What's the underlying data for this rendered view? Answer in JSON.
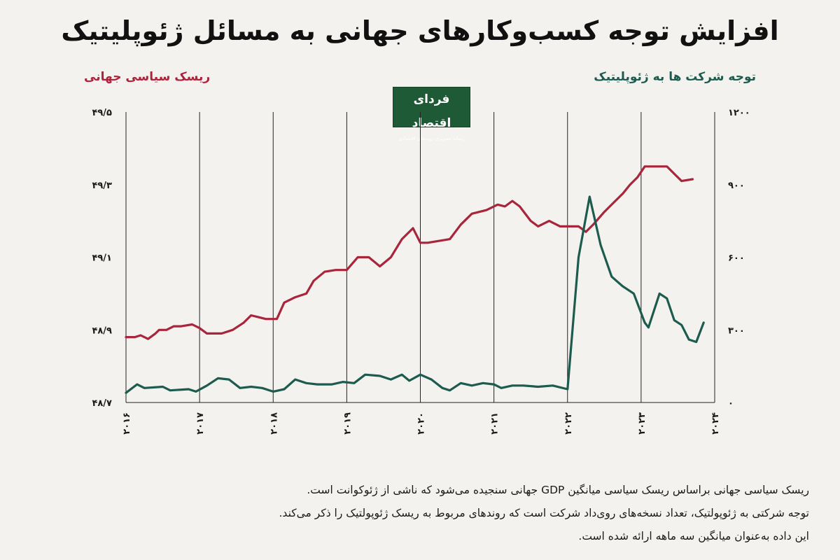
{
  "title": "افزایش توجه کسب‌وکارهای جهانی به مسائل ژئوپلیتیک",
  "logo": {
    "name": "فردای اقتصاد",
    "tagline": "رسانه تصویری روندهای اقتصادی"
  },
  "notes": [
    "ریسک سیاسی جهانی براساس ریسک سیاسی میانگین GDP جهانی سنجیده می‌شود که ناشی از ژئوکوانت است.",
    "توجه شرکتی به ژئوپولتیک، تعداد نسخه‌های روی‌داد شرکت است که روندهای مربوط به ریسک ژئوپولتیک را ذکر می‌کند.",
    "این داده به‌عنوان میانگین سه ماهه ارائه شده است."
  ],
  "colors": {
    "risk": "#a8253c",
    "attention": "#1d5b4f",
    "background": "#f3f2ee"
  },
  "chart_data": {
    "type": "line",
    "x_tick_labels": [
      "۲۰۱۶",
      "۲۰۱۷",
      "۲۰۱۸",
      "۲۰۱۹",
      "۲۰۲۰",
      "۲۰۲۱",
      "۲۰۲۲",
      "۲۰۲۳",
      "۲۰۲۴"
    ],
    "xlim": [
      2016,
      2024
    ],
    "left_axis": {
      "label": "ریسک سیاسی جهانی",
      "tick_labels": [
        "۴۸/۷",
        "۴۸/۹",
        "۴۹/۱",
        "۴۹/۳",
        "۴۹/۵"
      ],
      "ylim": [
        48.7,
        49.5
      ]
    },
    "right_axis": {
      "label": "توجه شرکت ها به ژئوپلیتیک",
      "tick_labels": [
        "۰",
        "۳۰۰",
        "۶۰۰",
        "۹۰۰",
        "۱۲۰۰"
      ],
      "ylim": [
        0,
        1200
      ]
    },
    "grid": "vertical",
    "series": [
      {
        "name": "ریسک سیاسی جهانی",
        "axis": "left",
        "points": [
          [
            2016.0,
            48.88
          ],
          [
            2016.12,
            48.88
          ],
          [
            2016.2,
            48.885
          ],
          [
            2016.3,
            48.875
          ],
          [
            2016.4,
            48.89
          ],
          [
            2016.45,
            48.9
          ],
          [
            2016.55,
            48.9
          ],
          [
            2016.65,
            48.91
          ],
          [
            2016.75,
            48.91
          ],
          [
            2016.9,
            48.915
          ],
          [
            2017.0,
            48.905
          ],
          [
            2017.1,
            48.89
          ],
          [
            2017.3,
            48.89
          ],
          [
            2017.45,
            48.9
          ],
          [
            2017.6,
            48.92
          ],
          [
            2017.7,
            48.94
          ],
          [
            2017.8,
            48.935
          ],
          [
            2017.9,
            48.93
          ],
          [
            2018.05,
            48.93
          ],
          [
            2018.15,
            48.975
          ],
          [
            2018.3,
            48.99
          ],
          [
            2018.45,
            49.0
          ],
          [
            2018.55,
            49.035
          ],
          [
            2018.7,
            49.06
          ],
          [
            2018.85,
            49.065
          ],
          [
            2019.0,
            49.065
          ],
          [
            2019.15,
            49.1
          ],
          [
            2019.3,
            49.1
          ],
          [
            2019.45,
            49.075
          ],
          [
            2019.6,
            49.1
          ],
          [
            2019.75,
            49.15
          ],
          [
            2019.9,
            49.18
          ],
          [
            2020.0,
            49.14
          ],
          [
            2020.1,
            49.14
          ],
          [
            2020.25,
            49.145
          ],
          [
            2020.4,
            49.15
          ],
          [
            2020.55,
            49.19
          ],
          [
            2020.7,
            49.22
          ],
          [
            2020.9,
            49.23
          ],
          [
            2021.05,
            49.245
          ],
          [
            2021.15,
            49.24
          ],
          [
            2021.25,
            49.255
          ],
          [
            2021.35,
            49.24
          ],
          [
            2021.5,
            49.2
          ],
          [
            2021.6,
            49.185
          ],
          [
            2021.75,
            49.2
          ],
          [
            2021.9,
            49.185
          ],
          [
            2022.05,
            49.185
          ],
          [
            2022.15,
            49.185
          ],
          [
            2022.25,
            49.17
          ],
          [
            2022.35,
            49.19
          ],
          [
            2022.5,
            49.225
          ],
          [
            2022.6,
            49.245
          ],
          [
            2022.75,
            49.275
          ],
          [
            2022.85,
            49.3
          ],
          [
            2022.95,
            49.32
          ],
          [
            2023.05,
            49.35
          ],
          [
            2023.2,
            49.35
          ],
          [
            2023.35,
            49.35
          ],
          [
            2023.45,
            49.33
          ],
          [
            2023.55,
            49.31
          ],
          [
            2023.7,
            49.315
          ]
        ]
      },
      {
        "name": "توجه شرکت ها به ژئوپلیتیک",
        "axis": "right",
        "points": [
          [
            2016.0,
            40
          ],
          [
            2016.15,
            75
          ],
          [
            2016.25,
            60
          ],
          [
            2016.5,
            65
          ],
          [
            2016.6,
            50
          ],
          [
            2016.85,
            55
          ],
          [
            2016.95,
            45
          ],
          [
            2017.1,
            70
          ],
          [
            2017.25,
            100
          ],
          [
            2017.4,
            95
          ],
          [
            2017.55,
            60
          ],
          [
            2017.7,
            65
          ],
          [
            2017.85,
            60
          ],
          [
            2018.0,
            45
          ],
          [
            2018.15,
            55
          ],
          [
            2018.3,
            95
          ],
          [
            2018.45,
            80
          ],
          [
            2018.6,
            75
          ],
          [
            2018.8,
            75
          ],
          [
            2018.95,
            85
          ],
          [
            2019.1,
            80
          ],
          [
            2019.25,
            115
          ],
          [
            2019.45,
            110
          ],
          [
            2019.6,
            95
          ],
          [
            2019.75,
            115
          ],
          [
            2019.85,
            90
          ],
          [
            2020.0,
            115
          ],
          [
            2020.15,
            95
          ],
          [
            2020.3,
            60
          ],
          [
            2020.4,
            50
          ],
          [
            2020.55,
            80
          ],
          [
            2020.7,
            70
          ],
          [
            2020.85,
            80
          ],
          [
            2021.0,
            75
          ],
          [
            2021.1,
            60
          ],
          [
            2021.25,
            70
          ],
          [
            2021.4,
            70
          ],
          [
            2021.6,
            65
          ],
          [
            2021.8,
            70
          ],
          [
            2022.0,
            55
          ],
          [
            2022.15,
            600
          ],
          [
            2022.3,
            850
          ],
          [
            2022.45,
            650
          ],
          [
            2022.6,
            520
          ],
          [
            2022.75,
            480
          ],
          [
            2022.9,
            450
          ],
          [
            2023.05,
            330
          ],
          [
            2023.1,
            310
          ],
          [
            2023.25,
            450
          ],
          [
            2023.35,
            430
          ],
          [
            2023.45,
            340
          ],
          [
            2023.55,
            320
          ],
          [
            2023.65,
            260
          ],
          [
            2023.75,
            250
          ],
          [
            2023.85,
            330
          ]
        ]
      }
    ]
  }
}
